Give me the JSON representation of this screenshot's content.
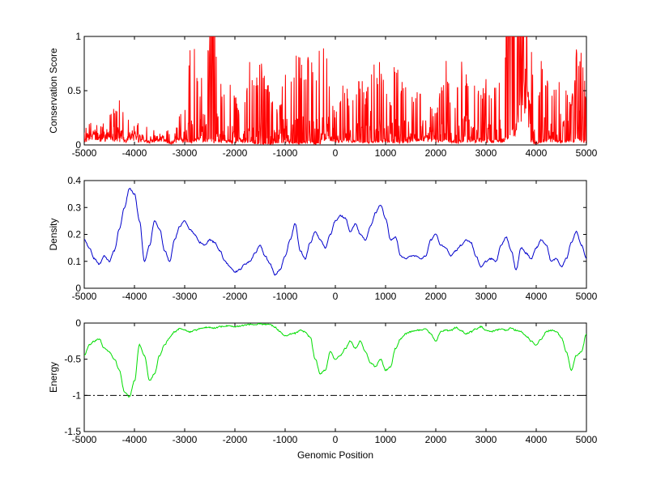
{
  "chart_data": [
    {
      "type": "line",
      "title": "",
      "xlabel": "",
      "ylabel": "Conservation Score",
      "xlim": [
        -5000,
        5000
      ],
      "ylim": [
        0,
        1
      ],
      "xticks": [
        "-5000",
        "-4000",
        "-3000",
        "-2000",
        "-1000",
        "0",
        "1000",
        "2000",
        "3000",
        "4000",
        "5000"
      ],
      "yticks": [
        "0",
        "0.5",
        "1"
      ],
      "grid": false,
      "series": [
        {
          "color": "#ff0000",
          "style": "spiky",
          "x": [
            -5000,
            -4900,
            -4800,
            -4700,
            -4600,
            -4500,
            -4400,
            -4300,
            -4200,
            -4100,
            -4000,
            -3900,
            -3800,
            -3700,
            -3600,
            -3500,
            -3400,
            -3300,
            -3200,
            -3100,
            -3000,
            -2900,
            -2800,
            -2700,
            -2600,
            -2500,
            -2400,
            -2300,
            -2200,
            -2100,
            -2000,
            -1900,
            -1800,
            -1700,
            -1600,
            -1500,
            -1400,
            -1300,
            -1200,
            -1100,
            -1000,
            -900,
            -800,
            -700,
            -600,
            -500,
            -400,
            -300,
            -200,
            -100,
            0,
            100,
            200,
            300,
            400,
            500,
            600,
            700,
            800,
            900,
            1000,
            1100,
            1200,
            1300,
            1400,
            1500,
            1600,
            1700,
            1800,
            1900,
            2000,
            2100,
            2200,
            2300,
            2400,
            2500,
            2600,
            2700,
            2800,
            2900,
            3000,
            3100,
            3200,
            3300,
            3400,
            3500,
            3600,
            3700,
            3800,
            3900,
            4000,
            4100,
            4200,
            4300,
            4400,
            4500,
            4600,
            4700,
            4800,
            4900,
            5000
          ],
          "peaks": [
            0.15,
            0.2,
            0.25,
            0.18,
            0.22,
            0.3,
            0.35,
            0.45,
            0.3,
            0.25,
            0.22,
            0.2,
            0.18,
            0.2,
            0.15,
            0.18,
            0.2,
            0.12,
            0.1,
            0.3,
            0.35,
            0.9,
            0.95,
            0.55,
            0.8,
            1.0,
            1.0,
            0.6,
            0.5,
            0.6,
            0.55,
            0.3,
            0.45,
            0.8,
            0.5,
            0.9,
            0.6,
            0.55,
            0.35,
            0.4,
            0.75,
            0.5,
            0.9,
            0.8,
            0.7,
            0.95,
            0.6,
            0.95,
            0.9,
            0.6,
            0.3,
            0.45,
            0.65,
            0.35,
            0.55,
            0.7,
            0.45,
            0.85,
            0.7,
            0.8,
            0.5,
            0.4,
            0.85,
            0.6,
            0.7,
            0.55,
            0.45,
            0.6,
            0.55,
            0.35,
            0.3,
            0.55,
            0.8,
            0.45,
            0.4,
            0.85,
            0.7,
            0.65,
            0.6,
            0.5,
            0.65,
            0.45,
            0.7,
            0.8,
            1.0,
            1.0,
            1.0,
            1.0,
            1.0,
            0.95,
            0.15,
            0.8,
            0.7,
            0.5,
            0.6,
            0.85,
            0.65,
            0.45,
            0.9,
            0.85,
            0.5
          ],
          "baseline": [
            0.05,
            0.08,
            0.1,
            0.06,
            0.08,
            0.1,
            0.08,
            0.06,
            0.04,
            0.1,
            0.08,
            0.05,
            0.04,
            0.04,
            0.06,
            0.08,
            0.04,
            0.02,
            0.03,
            0.06,
            0.05,
            0.04,
            0.05,
            0.06,
            0.05,
            0.06,
            0.05,
            0.04,
            0.05,
            0.04,
            0.02,
            0.05,
            0.04,
            0.03,
            0.02,
            0.01,
            0.02,
            0.01,
            0.02,
            0.03,
            0.04,
            0.03,
            0.02,
            0.02,
            0.03,
            0.04,
            0.01,
            0.02,
            0.1,
            0.08,
            0.06,
            0.04,
            0.06,
            0.05,
            0.04,
            0.03,
            0.04,
            0.03,
            0.03,
            0.04,
            0.05,
            0.04,
            0.03,
            0.04,
            0.05,
            0.06,
            0.05,
            0.06,
            0.08,
            0.06,
            0.04,
            0.05,
            0.06,
            0.05,
            0.03,
            0.04,
            0.05,
            0.06,
            0.05,
            0.06,
            0.05,
            0.04,
            0.06,
            0.05,
            0.06,
            0.1,
            0.2,
            0.5,
            0.6,
            0.04,
            0.02,
            0.04,
            0.05,
            0.06,
            0.05,
            0.04,
            0.05,
            0.04,
            0.06,
            0.05,
            0.03
          ]
        }
      ]
    },
    {
      "type": "line",
      "title": "",
      "xlabel": "",
      "ylabel": "Density",
      "xlim": [
        -5000,
        5000
      ],
      "ylim": [
        0,
        0.4
      ],
      "xticks": [
        "-5000",
        "-4000",
        "-3000",
        "-2000",
        "-1000",
        "0",
        "1000",
        "2000",
        "3000",
        "4000",
        "5000"
      ],
      "yticks": [
        "0",
        "0.1",
        "0.2",
        "0.3",
        "0.4"
      ],
      "grid": false,
      "series": [
        {
          "color": "#0000cc",
          "x": [
            -5000,
            -4900,
            -4800,
            -4700,
            -4600,
            -4500,
            -4400,
            -4300,
            -4200,
            -4100,
            -4000,
            -3900,
            -3800,
            -3700,
            -3600,
            -3500,
            -3400,
            -3300,
            -3200,
            -3100,
            -3000,
            -2900,
            -2800,
            -2700,
            -2600,
            -2500,
            -2400,
            -2300,
            -2200,
            -2100,
            -2000,
            -1900,
            -1800,
            -1700,
            -1600,
            -1500,
            -1400,
            -1300,
            -1200,
            -1100,
            -1000,
            -900,
            -800,
            -700,
            -600,
            -500,
            -400,
            -300,
            -200,
            -100,
            0,
            100,
            200,
            300,
            400,
            500,
            600,
            700,
            800,
            900,
            1000,
            1100,
            1200,
            1300,
            1400,
            1500,
            1600,
            1700,
            1800,
            1900,
            2000,
            2100,
            2200,
            2300,
            2400,
            2500,
            2600,
            2700,
            2800,
            2900,
            3000,
            3100,
            3200,
            3300,
            3400,
            3500,
            3600,
            3700,
            3800,
            3900,
            4000,
            4100,
            4200,
            4300,
            4400,
            4500,
            4600,
            4700,
            4800,
            4900,
            5000
          ],
          "y": [
            0.18,
            0.15,
            0.11,
            0.09,
            0.12,
            0.1,
            0.14,
            0.22,
            0.3,
            0.37,
            0.35,
            0.25,
            0.1,
            0.16,
            0.25,
            0.22,
            0.14,
            0.1,
            0.18,
            0.23,
            0.25,
            0.22,
            0.2,
            0.17,
            0.16,
            0.18,
            0.17,
            0.14,
            0.1,
            0.08,
            0.06,
            0.07,
            0.09,
            0.1,
            0.13,
            0.16,
            0.12,
            0.09,
            0.05,
            0.07,
            0.12,
            0.18,
            0.24,
            0.14,
            0.11,
            0.17,
            0.21,
            0.18,
            0.15,
            0.2,
            0.25,
            0.27,
            0.26,
            0.21,
            0.24,
            0.2,
            0.18,
            0.23,
            0.28,
            0.31,
            0.26,
            0.18,
            0.19,
            0.12,
            0.11,
            0.12,
            0.12,
            0.11,
            0.12,
            0.18,
            0.2,
            0.16,
            0.15,
            0.12,
            0.14,
            0.16,
            0.18,
            0.17,
            0.12,
            0.08,
            0.1,
            0.11,
            0.1,
            0.16,
            0.19,
            0.14,
            0.07,
            0.15,
            0.13,
            0.11,
            0.15,
            0.18,
            0.16,
            0.1,
            0.11,
            0.08,
            0.11,
            0.17,
            0.21,
            0.16,
            0.11
          ]
        }
      ]
    },
    {
      "type": "line",
      "title": "",
      "xlabel": "Genomic Position",
      "ylabel": "Energy",
      "xlim": [
        -5000,
        5000
      ],
      "ylim": [
        -1.5,
        0
      ],
      "xticks": [
        "-5000",
        "-4000",
        "-3000",
        "-2000",
        "-1000",
        "0",
        "1000",
        "2000",
        "3000",
        "4000",
        "5000"
      ],
      "yticks": [
        "-1.5",
        "-1",
        "-0.5",
        "0"
      ],
      "grid": false,
      "reference_line": {
        "y": -1,
        "color": "#000000",
        "style": "dash-dot"
      },
      "series": [
        {
          "color": "#00dd00",
          "x": [
            -5000,
            -4900,
            -4800,
            -4700,
            -4600,
            -4500,
            -4400,
            -4300,
            -4200,
            -4100,
            -4000,
            -3900,
            -3800,
            -3700,
            -3600,
            -3500,
            -3400,
            -3300,
            -3200,
            -3100,
            -3000,
            -2900,
            -2800,
            -2700,
            -2600,
            -2500,
            -2400,
            -2300,
            -2200,
            -2100,
            -2000,
            -1900,
            -1800,
            -1700,
            -1600,
            -1500,
            -1400,
            -1300,
            -1200,
            -1100,
            -1000,
            -900,
            -800,
            -700,
            -600,
            -500,
            -400,
            -300,
            -200,
            -100,
            0,
            100,
            200,
            300,
            400,
            500,
            600,
            700,
            800,
            900,
            1000,
            1100,
            1200,
            1300,
            1400,
            1500,
            1600,
            1700,
            1800,
            1900,
            2000,
            2100,
            2200,
            2300,
            2400,
            2500,
            2600,
            2700,
            2800,
            2900,
            3000,
            3100,
            3200,
            3300,
            3400,
            3500,
            3600,
            3700,
            3800,
            3900,
            4000,
            4100,
            4200,
            4300,
            4400,
            4500,
            4600,
            4700,
            4800,
            4900,
            5000
          ],
          "y": [
            -0.45,
            -0.3,
            -0.25,
            -0.22,
            -0.35,
            -0.4,
            -0.5,
            -0.65,
            -0.95,
            -1.02,
            -0.8,
            -0.3,
            -0.45,
            -0.8,
            -0.7,
            -0.45,
            -0.3,
            -0.2,
            -0.12,
            -0.08,
            -0.1,
            -0.12,
            -0.1,
            -0.08,
            -0.06,
            -0.06,
            -0.07,
            -0.05,
            -0.04,
            -0.04,
            -0.05,
            -0.04,
            -0.03,
            -0.02,
            -0.02,
            -0.01,
            -0.02,
            -0.02,
            -0.06,
            -0.12,
            -0.18,
            -0.15,
            -0.14,
            -0.1,
            -0.12,
            -0.2,
            -0.5,
            -0.7,
            -0.65,
            -0.4,
            -0.5,
            -0.45,
            -0.35,
            -0.25,
            -0.35,
            -0.25,
            -0.4,
            -0.55,
            -0.6,
            -0.5,
            -0.65,
            -0.6,
            -0.35,
            -0.22,
            -0.15,
            -0.12,
            -0.1,
            -0.1,
            -0.08,
            -0.15,
            -0.25,
            -0.12,
            -0.1,
            -0.1,
            -0.06,
            -0.1,
            -0.15,
            -0.12,
            -0.08,
            -0.05,
            -0.1,
            -0.12,
            -0.1,
            -0.08,
            -0.1,
            -0.07,
            -0.1,
            -0.12,
            -0.18,
            -0.25,
            -0.3,
            -0.22,
            -0.12,
            -0.1,
            -0.12,
            -0.2,
            -0.4,
            -0.65,
            -0.45,
            -0.4,
            -0.15
          ]
        }
      ]
    }
  ]
}
